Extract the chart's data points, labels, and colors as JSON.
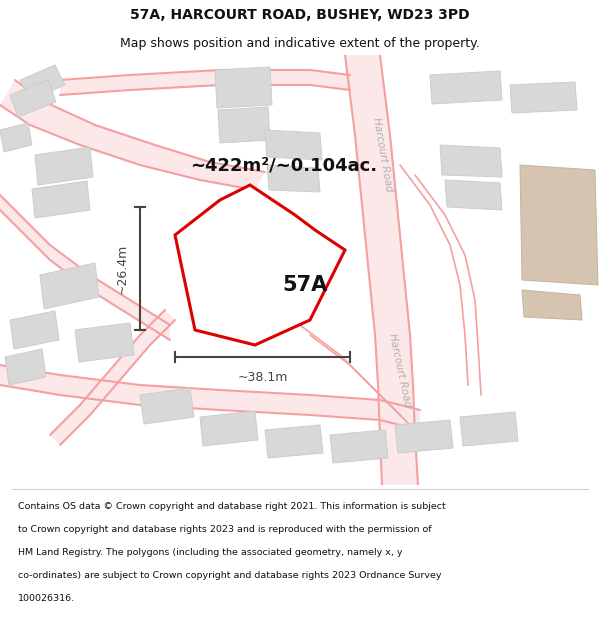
{
  "title": "57A, HARCOURT ROAD, BUSHEY, WD23 3PD",
  "subtitle": "Map shows position and indicative extent of the property.",
  "footer_lines": [
    "Contains OS data © Crown copyright and database right 2021. This information is subject",
    "to Crown copyright and database rights 2023 and is reproduced with the permission of",
    "HM Land Registry. The polygons (including the associated geometry, namely x, y",
    "co-ordinates) are subject to Crown copyright and database rights 2023 Ordnance Survey",
    "100026316."
  ],
  "map_bg": "#ffffff",
  "road_color": "#f4a0a0",
  "road_fill": "#f8f0f0",
  "building_color": "#d8d8d8",
  "building_edge": "#cccccc",
  "tan_color": "#d4c4b0",
  "tan_edge": "#c4b4a0",
  "highlight_color": "#dd0000",
  "dim_color": "#444444",
  "label_57A": "57A",
  "area_label": "~422m²/~0.104ac.",
  "width_label": "~38.1m",
  "height_label": "~26.4m",
  "road_label": "Harcourt Road",
  "title_fontsize": 10,
  "subtitle_fontsize": 9,
  "footer_fontsize": 6.8,
  "area_fontsize": 13,
  "dim_fontsize": 9,
  "label_fontsize": 15
}
